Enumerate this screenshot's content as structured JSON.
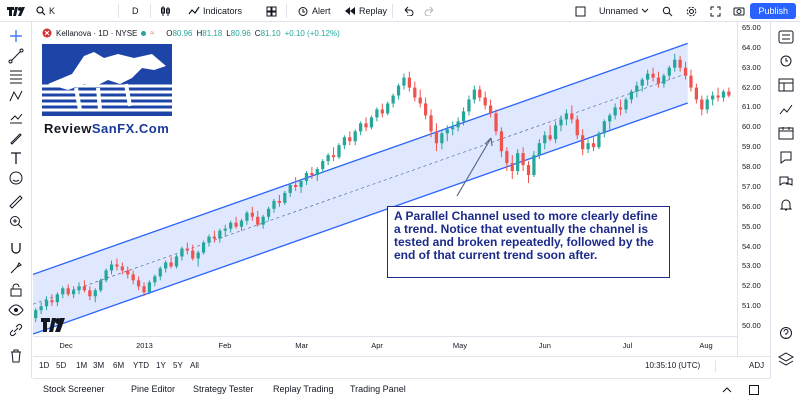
{
  "topbar": {
    "symbol": "K",
    "interval": "D",
    "indicators_label": "Indicators",
    "alert_label": "Alert",
    "replay_label": "Replay",
    "layout_name": "Unnamed",
    "publish_label": "Publish"
  },
  "legend": {
    "name": "Kellanova · 1D · NYSE",
    "o_label": "O",
    "o_value": "80.96",
    "h_label": "H",
    "h_value": "81.18",
    "l_label": "L",
    "l_value": "80.96",
    "c_label": "C",
    "c_value": "81.10",
    "change": "+0.10 (+0.12%)",
    "colors": {
      "up": "#26a69a",
      "down": "#ef5350"
    }
  },
  "logo": {
    "brand_part1": "Review",
    "brand_part2": "SanFX.Com",
    "brand_colors": {
      "part1": "#131722",
      "part2": "#1a3a9a"
    }
  },
  "annotation": {
    "text": "A Parallel Channel used to more clearly define a trend. Notice that eventually the channel is tested and broken repeatedly, followed by the end of that current trend soon after."
  },
  "price_axis": {
    "labels": [
      "65.00",
      "64.00",
      "63.00",
      "62.00",
      "61.00",
      "60.00",
      "59.00",
      "58.00",
      "57.00",
      "56.00",
      "55.00",
      "54.00",
      "53.00",
      "52.00",
      "51.00",
      "50.00"
    ]
  },
  "time_axis": {
    "labels": [
      "Dec",
      "2013",
      "Feb",
      "Mar",
      "Apr",
      "May",
      "Jun",
      "Jul",
      "Aug"
    ],
    "time_display": "10:35:10 (UTC)",
    "adj_label": "ADJ"
  },
  "range_buttons": [
    "1D",
    "5D",
    "1M",
    "3M",
    "6M",
    "YTD",
    "1Y",
    "5Y",
    "All"
  ],
  "bottom_tabs": [
    "Stock Screener",
    "Pine Editor",
    "Strategy Tester",
    "Replay Trading",
    "Trading Panel"
  ],
  "chart_data": {
    "type": "candlestick",
    "symbol": "K",
    "ylim": [
      49.5,
      65.3
    ],
    "channel": {
      "color": "#2962ff",
      "fill": "#dbe6ff",
      "upper": [
        [
          0,
          52.6
        ],
        [
          1,
          65.1
        ]
      ],
      "lower": [
        [
          0,
          49.6
        ],
        [
          1,
          62.1
        ]
      ],
      "visible_end": 0.93
    },
    "candles": [
      [
        50.4,
        50.9,
        50.2,
        50.8
      ],
      [
        50.8,
        51.2,
        50.6,
        51.0
      ],
      [
        51.0,
        51.5,
        50.8,
        51.3
      ],
      [
        51.3,
        51.6,
        51.0,
        51.2
      ],
      [
        51.2,
        51.7,
        51.0,
        51.6
      ],
      [
        51.6,
        52.0,
        51.4,
        51.9
      ],
      [
        51.9,
        52.1,
        51.5,
        51.6
      ],
      [
        51.6,
        52.0,
        51.4,
        51.8
      ],
      [
        51.8,
        52.2,
        51.6,
        52.0
      ],
      [
        52.0,
        52.3,
        51.7,
        51.8
      ],
      [
        51.8,
        52.0,
        51.3,
        51.5
      ],
      [
        51.5,
        51.9,
        51.2,
        51.8
      ],
      [
        51.8,
        52.4,
        51.7,
        52.3
      ],
      [
        52.3,
        52.9,
        52.2,
        52.8
      ],
      [
        52.8,
        53.3,
        52.6,
        53.1
      ],
      [
        53.1,
        53.4,
        52.8,
        53.0
      ],
      [
        53.0,
        53.2,
        52.6,
        52.8
      ],
      [
        52.8,
        53.0,
        52.4,
        52.6
      ],
      [
        52.6,
        52.8,
        52.1,
        52.3
      ],
      [
        52.3,
        52.5,
        51.8,
        52.0
      ],
      [
        52.0,
        52.2,
        51.5,
        51.7
      ],
      [
        51.7,
        52.3,
        51.6,
        52.2
      ],
      [
        52.2,
        52.6,
        52.0,
        52.5
      ],
      [
        52.5,
        53.0,
        52.3,
        52.9
      ],
      [
        52.9,
        53.3,
        52.7,
        53.2
      ],
      [
        53.2,
        53.5,
        52.9,
        53.0
      ],
      [
        53.0,
        53.6,
        52.9,
        53.5
      ],
      [
        53.5,
        54.0,
        53.3,
        53.9
      ],
      [
        53.9,
        54.2,
        53.6,
        53.8
      ],
      [
        53.8,
        54.1,
        53.3,
        53.4
      ],
      [
        53.4,
        53.8,
        53.0,
        53.7
      ],
      [
        53.7,
        54.3,
        53.6,
        54.2
      ],
      [
        54.2,
        54.6,
        54.0,
        54.5
      ],
      [
        54.5,
        54.8,
        54.2,
        54.4
      ],
      [
        54.4,
        54.9,
        54.2,
        54.8
      ],
      [
        54.8,
        55.1,
        54.5,
        54.9
      ],
      [
        54.9,
        55.3,
        54.7,
        55.2
      ],
      [
        55.2,
        55.5,
        54.9,
        55.0
      ],
      [
        55.0,
        55.4,
        54.8,
        55.3
      ],
      [
        55.3,
        55.8,
        55.1,
        55.7
      ],
      [
        55.7,
        56.0,
        55.3,
        55.5
      ],
      [
        55.5,
        55.8,
        55.0,
        55.1
      ],
      [
        55.1,
        55.6,
        54.9,
        55.5
      ],
      [
        55.5,
        56.0,
        55.3,
        55.9
      ],
      [
        55.9,
        56.4,
        55.7,
        56.3
      ],
      [
        56.3,
        56.6,
        56.0,
        56.2
      ],
      [
        56.2,
        56.8,
        56.1,
        56.7
      ],
      [
        56.7,
        57.2,
        56.5,
        57.1
      ],
      [
        57.1,
        57.5,
        56.8,
        57.0
      ],
      [
        57.0,
        57.4,
        56.7,
        57.3
      ],
      [
        57.3,
        57.8,
        57.1,
        57.7
      ],
      [
        57.7,
        58.0,
        57.4,
        57.6
      ],
      [
        57.6,
        58.0,
        57.3,
        57.9
      ],
      [
        57.9,
        58.4,
        57.7,
        58.3
      ],
      [
        58.3,
        58.7,
        58.1,
        58.6
      ],
      [
        58.6,
        59.0,
        58.3,
        58.5
      ],
      [
        58.5,
        59.2,
        58.4,
        59.1
      ],
      [
        59.1,
        59.6,
        58.9,
        59.5
      ],
      [
        59.5,
        59.8,
        59.1,
        59.3
      ],
      [
        59.3,
        59.9,
        59.1,
        59.8
      ],
      [
        59.8,
        60.3,
        59.6,
        60.2
      ],
      [
        60.2,
        60.5,
        59.8,
        60.0
      ],
      [
        60.0,
        60.6,
        59.9,
        60.5
      ],
      [
        60.5,
        61.0,
        60.3,
        60.9
      ],
      [
        60.9,
        61.2,
        60.5,
        60.7
      ],
      [
        60.7,
        61.3,
        60.6,
        61.2
      ],
      [
        61.2,
        61.7,
        61.0,
        61.6
      ],
      [
        61.6,
        62.2,
        61.4,
        62.1
      ],
      [
        62.1,
        62.7,
        61.9,
        62.5
      ],
      [
        62.5,
        62.8,
        61.8,
        62.0
      ],
      [
        62.0,
        62.3,
        61.3,
        61.5
      ],
      [
        61.5,
        61.9,
        61.0,
        61.2
      ],
      [
        61.2,
        61.5,
        60.4,
        60.6
      ],
      [
        60.6,
        60.9,
        59.5,
        59.8
      ],
      [
        59.8,
        60.2,
        58.8,
        59.2
      ],
      [
        59.2,
        59.9,
        58.9,
        59.7
      ],
      [
        59.7,
        60.1,
        59.3,
        59.9
      ],
      [
        59.9,
        60.3,
        59.6,
        60.0
      ],
      [
        60.0,
        60.5,
        59.8,
        60.3
      ],
      [
        60.3,
        61.0,
        60.1,
        60.8
      ],
      [
        60.8,
        61.6,
        60.6,
        61.4
      ],
      [
        61.4,
        62.1,
        61.2,
        61.9
      ],
      [
        61.9,
        62.1,
        61.3,
        61.5
      ],
      [
        61.5,
        61.8,
        60.9,
        61.1
      ],
      [
        61.1,
        61.4,
        60.5,
        60.7
      ],
      [
        60.7,
        60.9,
        59.6,
        59.8
      ],
      [
        59.8,
        60.0,
        58.5,
        58.8
      ],
      [
        58.8,
        59.0,
        57.8,
        58.2
      ],
      [
        58.2,
        58.6,
        57.4,
        57.8
      ],
      [
        57.8,
        58.9,
        57.6,
        58.7
      ],
      [
        58.7,
        59.0,
        57.8,
        58.1
      ],
      [
        58.1,
        58.3,
        57.2,
        57.6
      ],
      [
        57.6,
        58.8,
        57.5,
        58.6
      ],
      [
        58.6,
        59.4,
        58.4,
        59.2
      ],
      [
        59.2,
        59.8,
        58.9,
        59.6
      ],
      [
        59.6,
        60.1,
        59.3,
        59.4
      ],
      [
        59.4,
        60.3,
        59.2,
        60.1
      ],
      [
        60.1,
        60.6,
        59.8,
        60.4
      ],
      [
        60.4,
        60.9,
        60.1,
        60.7
      ],
      [
        60.7,
        61.1,
        60.2,
        60.4
      ],
      [
        60.4,
        60.6,
        59.4,
        59.6
      ],
      [
        59.6,
        59.9,
        58.6,
        58.9
      ],
      [
        58.9,
        59.4,
        58.7,
        59.2
      ],
      [
        59.2,
        59.5,
        58.8,
        59.0
      ],
      [
        59.0,
        59.8,
        58.9,
        59.7
      ],
      [
        59.7,
        60.4,
        59.5,
        60.3
      ],
      [
        60.3,
        60.7,
        59.9,
        60.6
      ],
      [
        60.6,
        61.2,
        60.4,
        61.0
      ],
      [
        61.0,
        61.4,
        60.6,
        60.9
      ],
      [
        60.9,
        61.5,
        60.7,
        61.4
      ],
      [
        61.4,
        61.9,
        61.2,
        61.8
      ],
      [
        61.8,
        62.3,
        61.5,
        62.1
      ],
      [
        62.1,
        62.5,
        61.8,
        62.4
      ],
      [
        62.4,
        62.9,
        62.1,
        62.7
      ],
      [
        62.7,
        63.0,
        62.3,
        62.5
      ],
      [
        62.5,
        62.8,
        62.0,
        62.2
      ],
      [
        62.2,
        62.7,
        62.0,
        62.6
      ],
      [
        62.6,
        63.1,
        62.4,
        63.0
      ],
      [
        63.0,
        63.7,
        62.8,
        63.4
      ],
      [
        63.4,
        63.6,
        62.8,
        63.0
      ],
      [
        63.0,
        63.3,
        62.4,
        62.6
      ],
      [
        62.6,
        62.9,
        61.8,
        62.0
      ],
      [
        62.0,
        62.2,
        61.2,
        61.4
      ],
      [
        61.4,
        61.6,
        60.6,
        60.9
      ],
      [
        60.9,
        61.6,
        60.7,
        61.4
      ],
      [
        61.4,
        61.8,
        61.1,
        61.6
      ],
      [
        61.6,
        62.0,
        61.3,
        61.5
      ],
      [
        61.5,
        61.9,
        61.3,
        61.8
      ],
      [
        61.8,
        62.0,
        61.5,
        61.6
      ]
    ]
  }
}
